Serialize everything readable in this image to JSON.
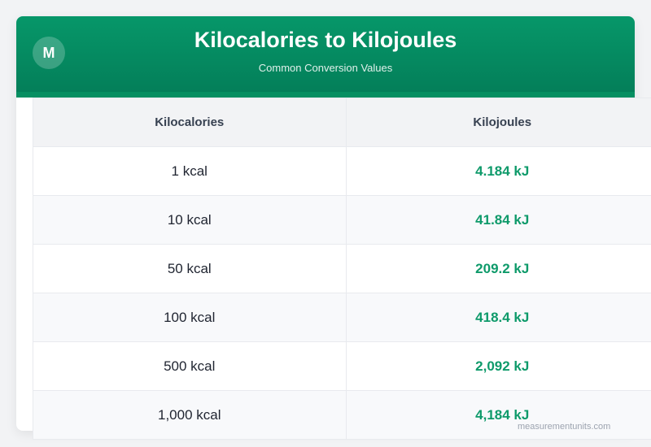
{
  "header": {
    "logo_letter": "M",
    "title": "Kilocalories to Kilojoules",
    "subtitle": "Common Conversion Values"
  },
  "table": {
    "columns": [
      "Kilocalories",
      "Kilojoules"
    ],
    "rows": [
      {
        "kcal": "1 kcal",
        "kj": "4.184 kJ"
      },
      {
        "kcal": "10 kcal",
        "kj": "41.84 kJ"
      },
      {
        "kcal": "50 kcal",
        "kj": "209.2 kJ"
      },
      {
        "kcal": "100 kcal",
        "kj": "418.4 kJ"
      },
      {
        "kcal": "500 kcal",
        "kj": "2,092 kJ"
      },
      {
        "kcal": "1,000 kcal",
        "kj": "4,184 kJ"
      }
    ]
  },
  "watermark": "measurementunits.com",
  "colors": {
    "brand_green": "#059669",
    "value_green": "#0e9a6a",
    "header_text": "#374151"
  }
}
